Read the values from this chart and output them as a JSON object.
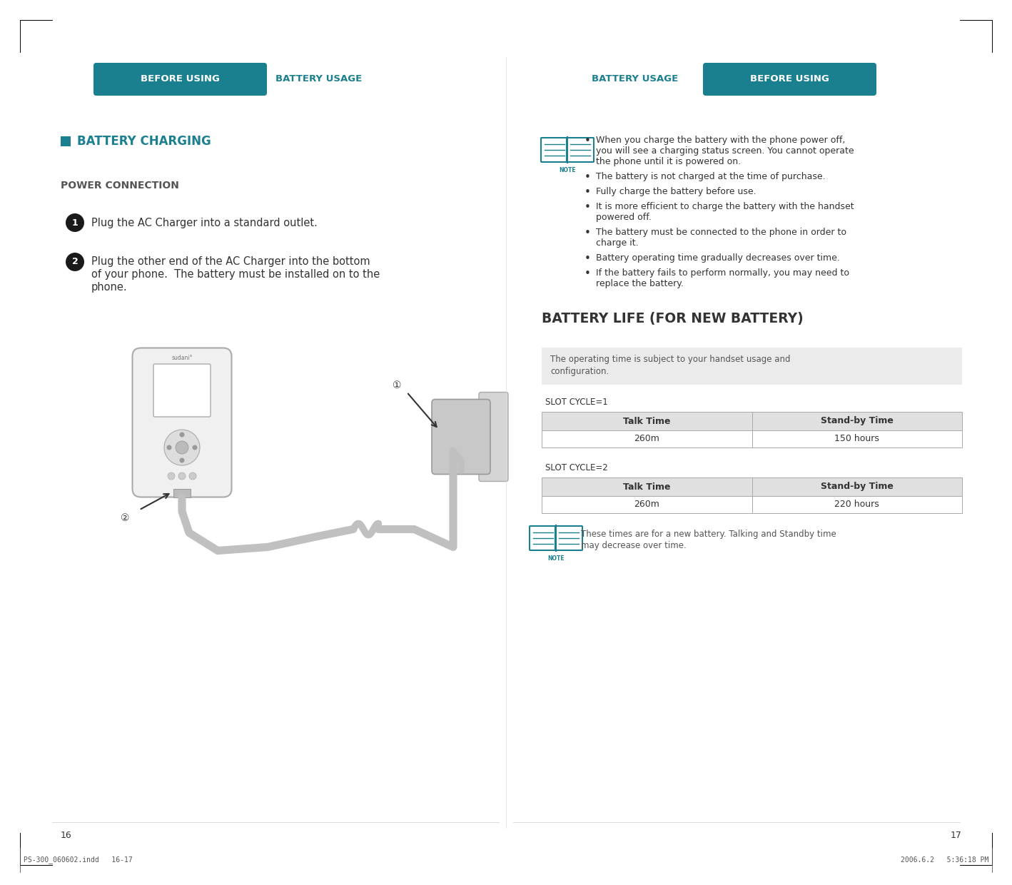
{
  "bg_color": "#ffffff",
  "teal_color": "#1a7f8e",
  "dark_teal_text": "#1a7f8e",
  "text_color": "#333333",
  "gray_text": "#666666",
  "page_num_left": "16",
  "page_num_right": "17",
  "footer_left": "PS-300_060602.indd   16-17",
  "footer_right": "2006.6.2   5:36:18 PM",
  "left_header_box": "BEFORE USING",
  "left_header_text": "BATTERY USAGE",
  "right_header_box": "BEFORE USING",
  "right_header_text": "BATTERY USAGE",
  "section_title": "BATTERY CHARGING",
  "power_connection_label": "POWER CONNECTION",
  "step1_text": "Plug the AC Charger into a standard outlet.",
  "step2_lines": [
    "Plug the other end of the AC Charger into the bottom",
    "of your phone.  The battery must be installed on to the",
    "phone."
  ],
  "battery_life_title": "BATTERY LIFE (FOR NEW BATTERY)",
  "note_box_lines": [
    "The operating time is subject to your handset usage and",
    "configuration."
  ],
  "slot1_label": "SLOT CYCLE=1",
  "slot1_col1_header": "Talk Time",
  "slot1_col2_header": "Stand-by Time",
  "slot1_col1_val": "260m",
  "slot1_col2_val": "150 hours",
  "slot2_label": "SLOT CYCLE=2",
  "slot2_col1_header": "Talk Time",
  "slot2_col2_header": "Stand-by Time",
  "slot2_col1_val": "260m",
  "slot2_col2_val": "220 hours",
  "bottom_note_lines": [
    "These times are for a new battery. Talking and Standby time",
    "may decrease over time."
  ],
  "bullet_points": [
    [
      "When you charge the battery with the phone power off,",
      "you will see a charging status screen. You cannot operate",
      "the phone until it is powered on."
    ],
    [
      "The battery is not charged at the time of purchase."
    ],
    [
      "Fully charge the battery before use."
    ],
    [
      "It is more efficient to charge the battery with the handset",
      "powered off."
    ],
    [
      "The battery must be connected to the phone in order to",
      "charge it."
    ],
    [
      "Battery operating time gradually decreases over time."
    ],
    [
      "If the battery fails to perform normally, you may need to",
      "replace the battery."
    ]
  ]
}
